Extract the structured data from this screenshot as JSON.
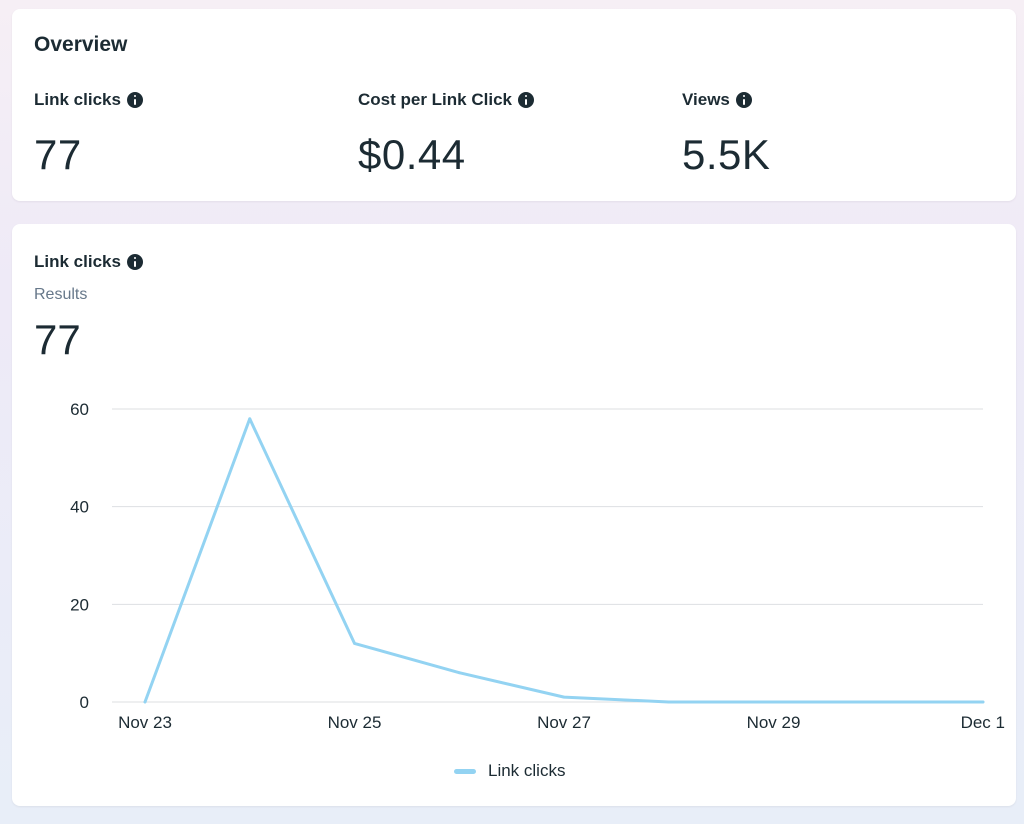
{
  "overview": {
    "title": "Overview",
    "metrics": [
      {
        "label": "Link clicks",
        "value": "77",
        "icon": "info-icon"
      },
      {
        "label": "Cost per Link Click",
        "value": "$0.44",
        "icon": "info-icon"
      },
      {
        "label": "Views",
        "value": "5.5K",
        "icon": "info-icon"
      }
    ]
  },
  "chart_card": {
    "title": "Link clicks",
    "icon": "info-icon",
    "results_label": "Results",
    "results_value": "77"
  },
  "colors": {
    "line": "#93d3f2",
    "text": "#1c2b33",
    "muted": "#67788a",
    "grid": "#dddfe2"
  },
  "chart_data": {
    "type": "line",
    "title": "",
    "xlabel": "",
    "ylabel": "",
    "x": [
      "Nov 23",
      "Nov 24",
      "Nov 25",
      "Nov 26",
      "Nov 27",
      "Nov 28",
      "Nov 29",
      "Nov 30",
      "Dec 1"
    ],
    "x_tick_labels": [
      "Nov 23",
      "Nov 25",
      "Nov 27",
      "Nov 29",
      "Dec 1"
    ],
    "y_ticks": [
      0,
      20,
      40,
      60
    ],
    "ylim": [
      0,
      60
    ],
    "grid": true,
    "legend_position": "bottom-center",
    "series": [
      {
        "name": "Link clicks",
        "values": [
          0,
          58,
          12,
          6,
          1,
          0,
          0,
          0,
          0
        ]
      }
    ]
  }
}
